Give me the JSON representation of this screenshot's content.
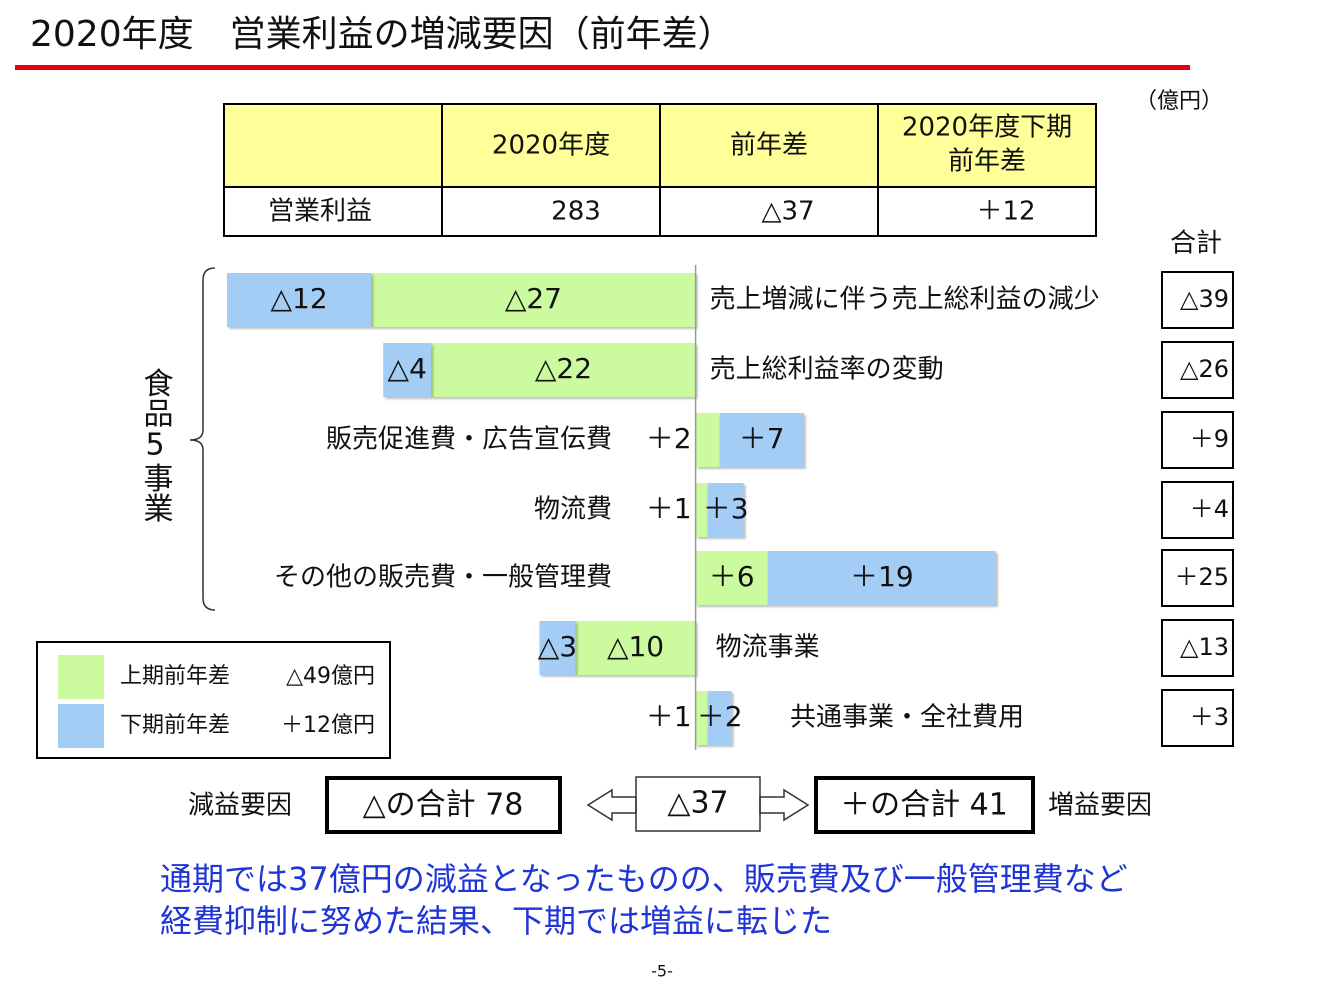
{
  "title": "2020年度　営業利益の増減要因（前年差）",
  "unit": "（億円）",
  "table": {
    "header": [
      "2020年度",
      "前年差",
      [
        "2020年度下期",
        "前年差"
      ]
    ],
    "rows": [
      [
        "営業利益",
        "283",
        "△37",
        "＋12"
      ]
    ]
  },
  "chart_data": {
    "type": "bar",
    "categories": [
      "売上増減に伴う売上総利益の減少",
      "売上総利益率の変動",
      "販売促進費・広告宣伝費",
      "物流費",
      "その他の販売費・一般管理費",
      "物流事業",
      "共通事業・全社費用"
    ],
    "group_label": "食品5事業",
    "xlim": [
      -39,
      25
    ],
    "series": [
      {
        "name": "上期前年差",
        "color": "#ccfa9e",
        "values": [
          -27,
          -22,
          2,
          1,
          6,
          -10,
          1
        ],
        "value_labels": [
          "△27",
          "△22",
          "＋2",
          "＋1",
          "＋6",
          "△10",
          "＋1"
        ],
        "total": -49,
        "total_label": "△49億円"
      },
      {
        "name": "下期前年差",
        "color": "#a3cdf5",
        "values": [
          -12,
          -4,
          7,
          3,
          19,
          -3,
          2
        ],
        "value_labels": [
          "△12",
          "△4",
          "＋7",
          "＋3",
          "＋19",
          "△3",
          "＋2"
        ],
        "total": 12,
        "total_label": "＋12億円"
      }
    ],
    "totals": {
      "title": "合計",
      "values": [
        -39,
        -26,
        9,
        4,
        25,
        -13,
        3
      ],
      "value_labels": [
        "△39",
        "△26",
        "＋9",
        "＋4",
        "＋25",
        "△13",
        "＋3"
      ]
    }
  },
  "summary": {
    "left_label": "減益要因",
    "left_box": "△の合計 78",
    "center": "△37",
    "right_box": "＋の合計 41",
    "right_label": "増益要因"
  },
  "note": [
    "通期では37億円の減益となったものの、販売費及び一般管理費など",
    "経費抑制に努めた結果、下期では増益に転じた"
  ],
  "page_number": "-5-"
}
